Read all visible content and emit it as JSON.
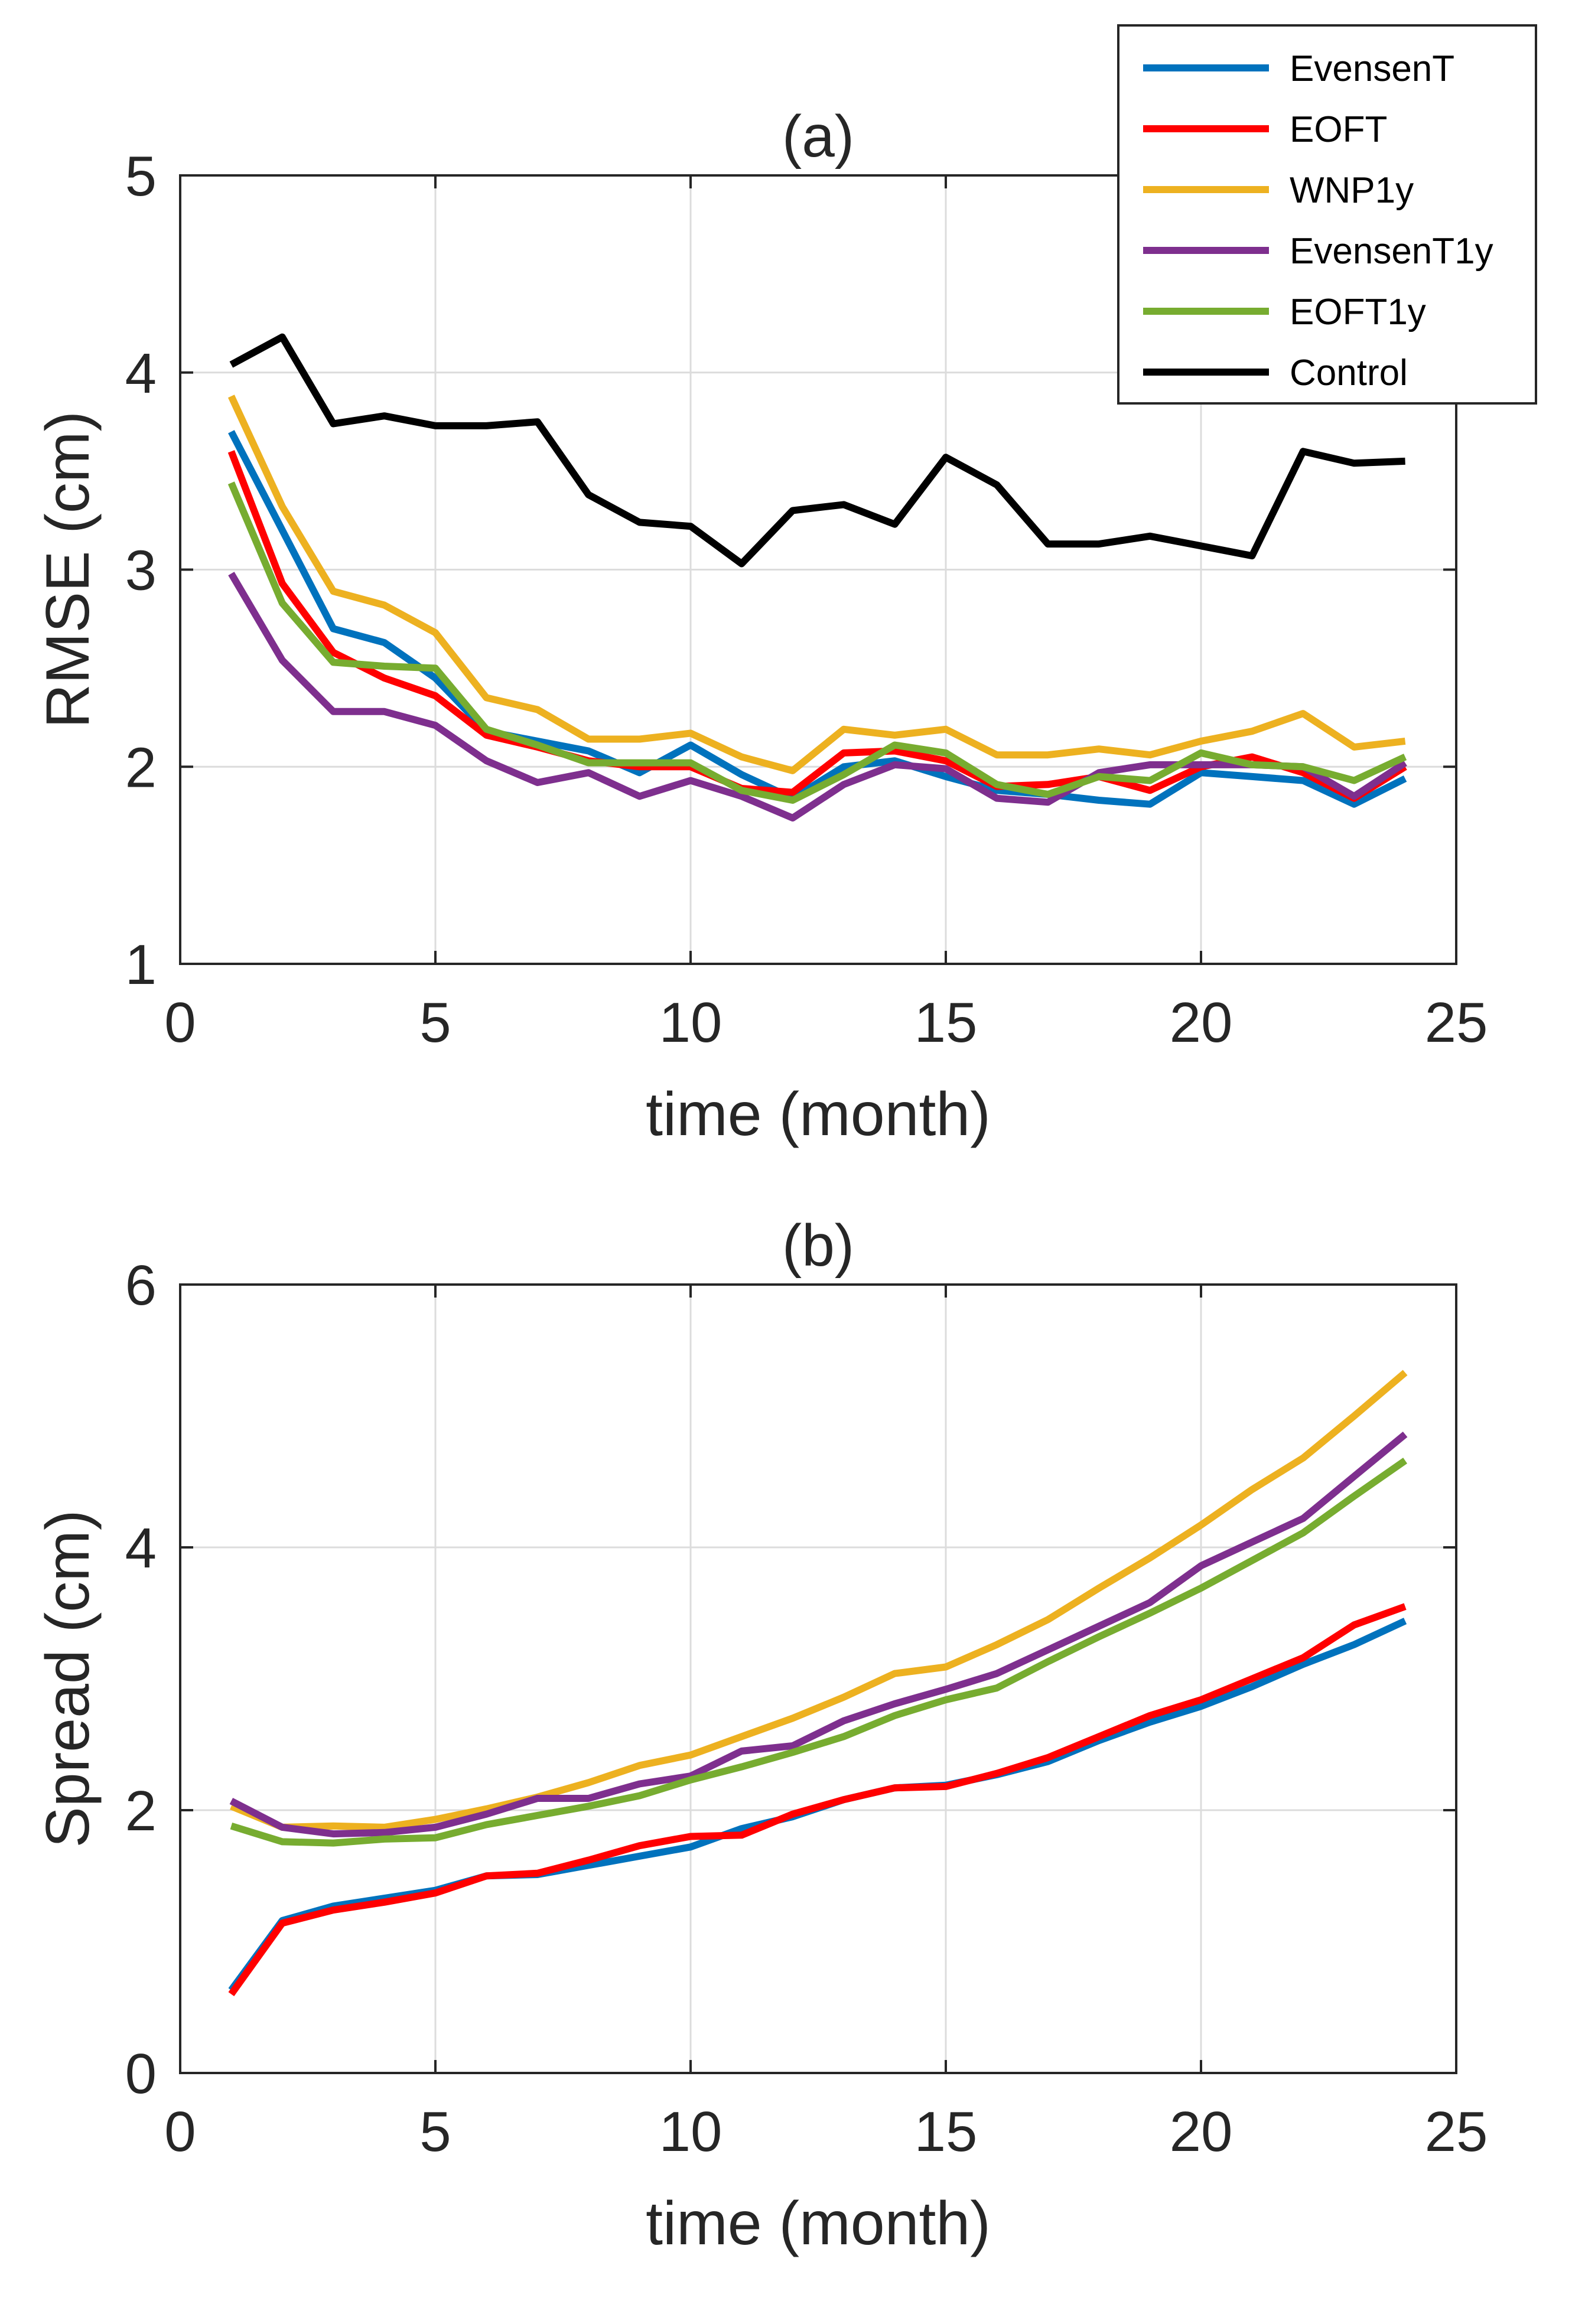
{
  "chart_data": [
    {
      "type": "line",
      "panel": "a",
      "title": "(a)",
      "xlabel": "time (month)",
      "ylabel": "RMSE (cm)",
      "xlim": [
        0,
        25
      ],
      "ylim": [
        1,
        5
      ],
      "xticks": [
        0,
        5,
        10,
        15,
        20,
        25
      ],
      "yticks": [
        1,
        2,
        3,
        4,
        5
      ],
      "grid": true,
      "legend": {
        "position": "top-right",
        "entries": [
          "EvensenT",
          "EOFT",
          "WNP1y",
          "EvensenT1y",
          "EOFT1y",
          "Control"
        ]
      },
      "x": [
        1,
        2,
        3,
        4,
        5,
        6,
        7,
        8,
        9,
        10,
        11,
        12,
        13,
        14,
        15,
        16,
        17,
        18,
        19,
        20,
        21,
        22,
        23,
        24
      ],
      "series": [
        {
          "name": "EvensenT",
          "color": "#0072BD",
          "values": [
            3.7,
            3.2,
            2.7,
            2.63,
            2.45,
            2.18,
            2.13,
            2.08,
            1.97,
            2.11,
            1.96,
            1.84,
            2.0,
            2.03,
            1.95,
            1.88,
            1.86,
            1.83,
            1.81,
            1.97,
            1.95,
            1.93,
            1.81,
            1.94
          ]
        },
        {
          "name": "EOFT",
          "color": "#FF0000",
          "values": [
            3.6,
            2.93,
            2.58,
            2.45,
            2.36,
            2.16,
            2.1,
            2.03,
            2.0,
            2.0,
            1.89,
            1.87,
            2.07,
            2.08,
            2.03,
            1.9,
            1.91,
            1.95,
            1.88,
            2.0,
            2.05,
            1.97,
            1.84,
            2.0
          ]
        },
        {
          "name": "WNP1y",
          "color": "#EDB120",
          "values": [
            3.88,
            3.32,
            2.89,
            2.82,
            2.68,
            2.35,
            2.29,
            2.14,
            2.14,
            2.17,
            2.05,
            1.98,
            2.19,
            2.16,
            2.19,
            2.06,
            2.06,
            2.09,
            2.06,
            2.13,
            2.18,
            2.27,
            2.1,
            2.13
          ]
        },
        {
          "name": "EvensenT1y",
          "color": "#7E2F8E",
          "values": [
            2.98,
            2.54,
            2.28,
            2.28,
            2.21,
            2.03,
            1.92,
            1.97,
            1.85,
            1.93,
            1.85,
            1.74,
            1.91,
            2.01,
            1.99,
            1.84,
            1.82,
            1.97,
            2.01,
            2.01,
            2.01,
            2.0,
            1.85,
            2.02
          ]
        },
        {
          "name": "EOFT1y",
          "color": "#77AC30",
          "values": [
            3.44,
            2.83,
            2.53,
            2.51,
            2.5,
            2.19,
            2.11,
            2.02,
            2.02,
            2.02,
            1.88,
            1.83,
            1.96,
            2.11,
            2.07,
            1.91,
            1.86,
            1.95,
            1.93,
            2.07,
            2.01,
            2.0,
            1.93,
            2.05
          ]
        },
        {
          "name": "Control",
          "color": "#000000",
          "values": [
            4.04,
            4.18,
            3.74,
            3.78,
            3.73,
            3.73,
            3.75,
            3.38,
            3.24,
            3.22,
            3.03,
            3.3,
            3.33,
            3.23,
            3.57,
            3.43,
            3.13,
            3.13,
            3.17,
            3.12,
            3.07,
            3.6,
            3.54,
            3.55
          ]
        }
      ]
    },
    {
      "type": "line",
      "panel": "b",
      "title": "(b)",
      "xlabel": "time (month)",
      "ylabel": "Spread (cm)",
      "xlim": [
        0,
        25
      ],
      "ylim": [
        0,
        6
      ],
      "xticks": [
        0,
        5,
        10,
        15,
        20,
        25
      ],
      "yticks": [
        0,
        2,
        4,
        6
      ],
      "grid": true,
      "x": [
        1,
        2,
        3,
        4,
        5,
        6,
        7,
        8,
        9,
        10,
        11,
        12,
        13,
        14,
        15,
        16,
        17,
        18,
        19,
        20,
        21,
        22,
        23,
        24
      ],
      "series": [
        {
          "name": "EvensenT",
          "color": "#0072BD",
          "values": [
            0.63,
            1.16,
            1.27,
            1.33,
            1.39,
            1.5,
            1.51,
            1.58,
            1.65,
            1.72,
            1.86,
            1.95,
            2.08,
            2.17,
            2.19,
            2.27,
            2.37,
            2.53,
            2.67,
            2.79,
            2.94,
            3.11,
            3.26,
            3.44
          ]
        },
        {
          "name": "EOFT",
          "color": "#FF0000",
          "values": [
            0.6,
            1.14,
            1.24,
            1.3,
            1.37,
            1.5,
            1.52,
            1.62,
            1.73,
            1.8,
            1.81,
            1.97,
            2.08,
            2.17,
            2.18,
            2.28,
            2.4,
            2.56,
            2.72,
            2.84,
            3.0,
            3.16,
            3.41,
            3.55
          ]
        },
        {
          "name": "WNP1y",
          "color": "#EDB120",
          "values": [
            2.03,
            1.87,
            1.88,
            1.87,
            1.93,
            2.01,
            2.1,
            2.21,
            2.34,
            2.42,
            2.56,
            2.7,
            2.86,
            3.04,
            3.09,
            3.26,
            3.45,
            3.69,
            3.92,
            4.17,
            4.44,
            4.68,
            5.0,
            5.33
          ]
        },
        {
          "name": "EvensenT1y",
          "color": "#7E2F8E",
          "values": [
            2.07,
            1.87,
            1.82,
            1.83,
            1.87,
            1.97,
            2.09,
            2.09,
            2.2,
            2.26,
            2.45,
            2.49,
            2.68,
            2.81,
            2.92,
            3.04,
            3.22,
            3.4,
            3.58,
            3.86,
            4.04,
            4.22,
            4.54,
            4.86
          ]
        },
        {
          "name": "EOFT1y",
          "color": "#77AC30",
          "values": [
            1.88,
            1.76,
            1.75,
            1.78,
            1.79,
            1.89,
            1.96,
            2.03,
            2.11,
            2.23,
            2.33,
            2.44,
            2.56,
            2.72,
            2.84,
            2.93,
            3.13,
            3.32,
            3.5,
            3.69,
            3.9,
            4.11,
            4.39,
            4.66
          ]
        }
      ]
    }
  ]
}
